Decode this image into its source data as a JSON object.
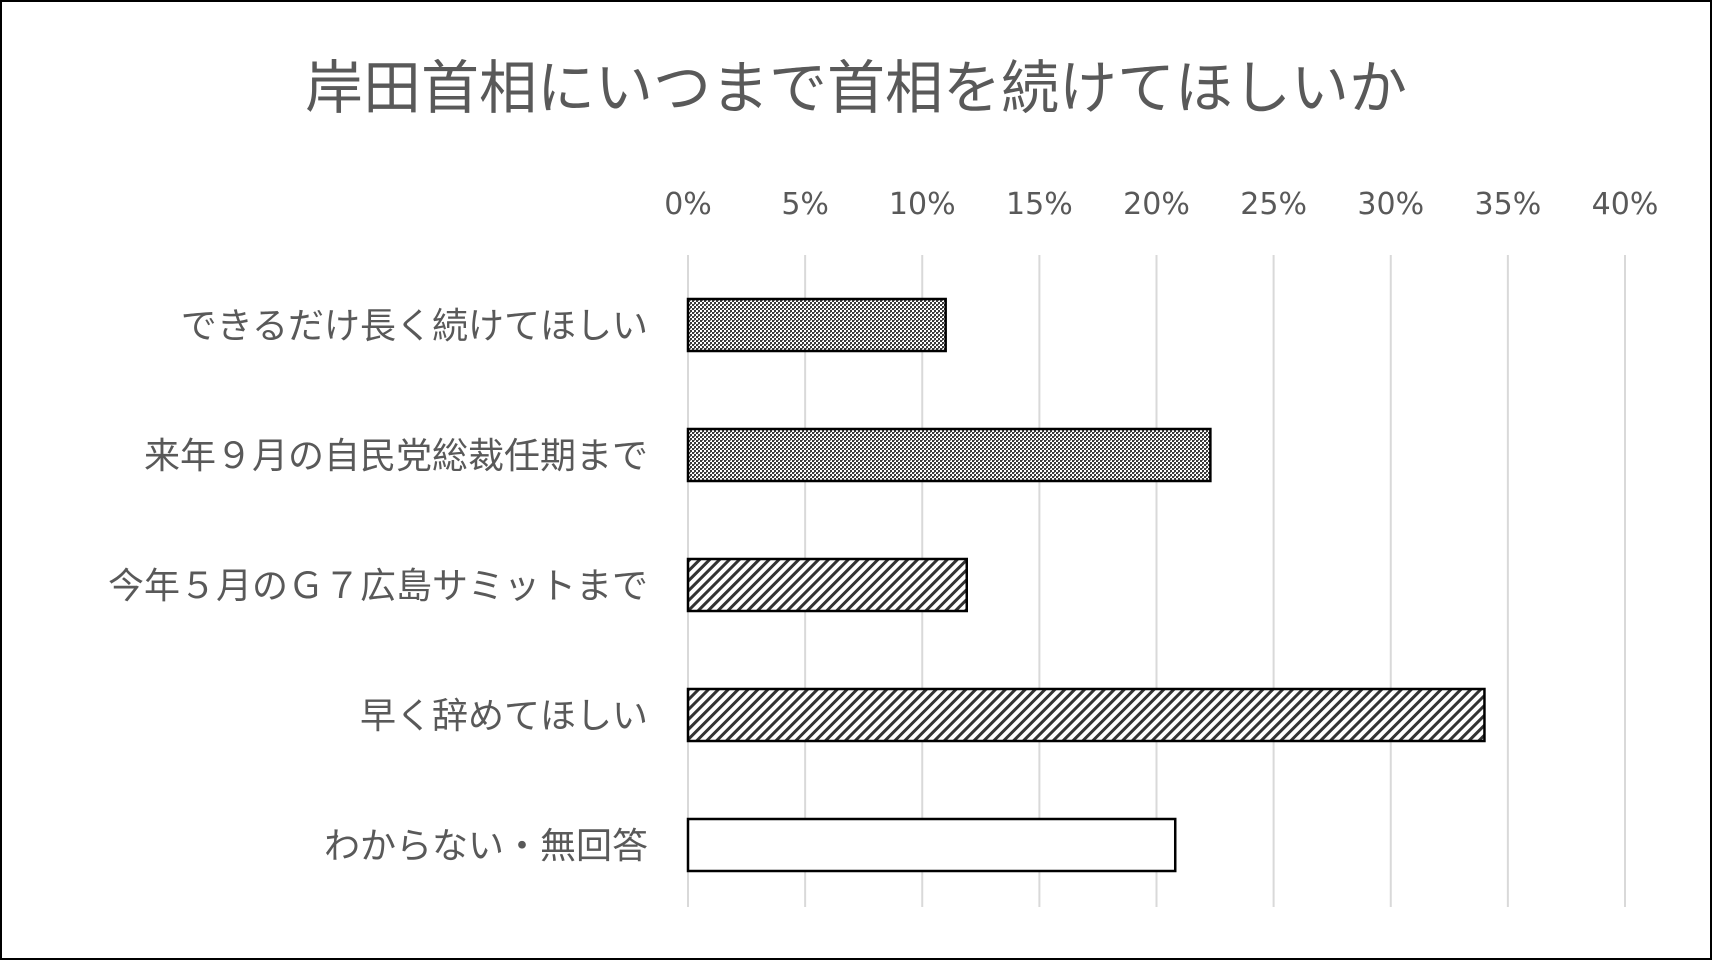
{
  "chart_data": {
    "type": "bar",
    "orientation": "horizontal",
    "title": "岸田首相にいつまで首相を続けてほしいか",
    "xlabel": "",
    "ylabel": "",
    "xlim": [
      0,
      40
    ],
    "ticks": [
      "0%",
      "5%",
      "10%",
      "15%",
      "20%",
      "25%",
      "30%",
      "35%",
      "40%"
    ],
    "tick_values": [
      0,
      5,
      10,
      15,
      20,
      25,
      30,
      35,
      40
    ],
    "grid": true,
    "legend": false,
    "axis_position": "top",
    "categories": [
      "できるだけ長く続けてほしい",
      "来年９月の自民党総裁任期まで",
      "今年５月のＧ７広島サミットまで",
      "早く辞めてほしい",
      "わからない・無回答"
    ],
    "values": [
      11,
      22.3,
      11.9,
      34,
      20.8
    ],
    "bar_patterns": [
      "dense-dots",
      "dense-dots",
      "diagonal-hatch",
      "diagonal-hatch",
      "none"
    ],
    "colors": {
      "text": "#595959",
      "grid": "#d9d9d9",
      "bar_outline": "#000000",
      "background": "#ffffff"
    }
  }
}
